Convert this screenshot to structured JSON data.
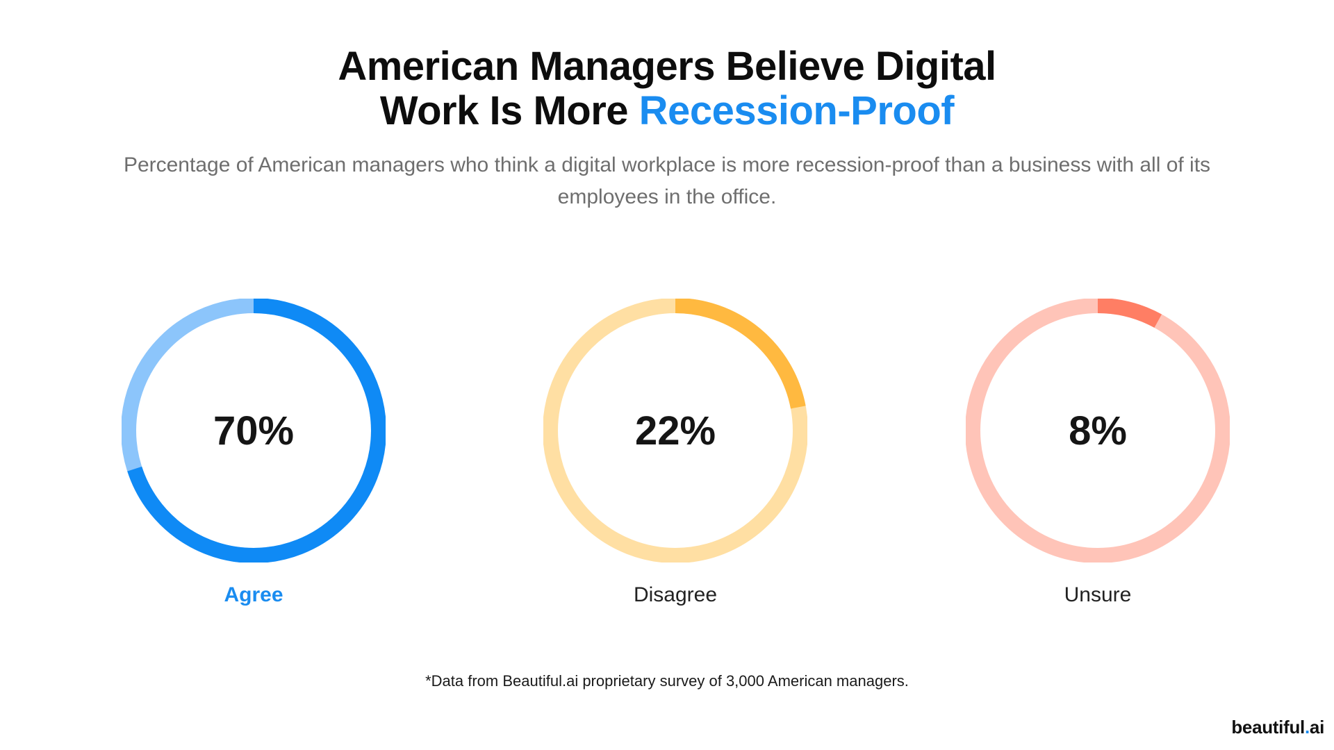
{
  "title": {
    "line1": "American Managers Believe Digital",
    "line2_prefix": "Work Is More ",
    "line2_accent": "Recession-Proof"
  },
  "subtitle": "Percentage of American managers who think a digital workplace is more recession-proof than a business with all of its employees in the office.",
  "chart_data": {
    "type": "pie",
    "categories": [
      "Agree",
      "Disagree",
      "Unsure"
    ],
    "values": [
      70,
      22,
      8
    ],
    "value_labels": [
      "70%",
      "22%",
      "8%"
    ],
    "unit": "%",
    "colors": {
      "Agree": {
        "fill": "#0f8af5",
        "track": "#8cc5fb"
      },
      "Disagree": {
        "fill": "#ffb940",
        "track": "#ffdfa3"
      },
      "Unsure": {
        "fill": "#ff7e64",
        "track": "#ffc4b8"
      }
    },
    "highlighted": "Agree"
  },
  "footnote": "*Data from Beautiful.ai proprietary survey of 3,000 American managers.",
  "logo": {
    "text": "beautiful",
    "dot": ".",
    "suffix": "ai"
  }
}
